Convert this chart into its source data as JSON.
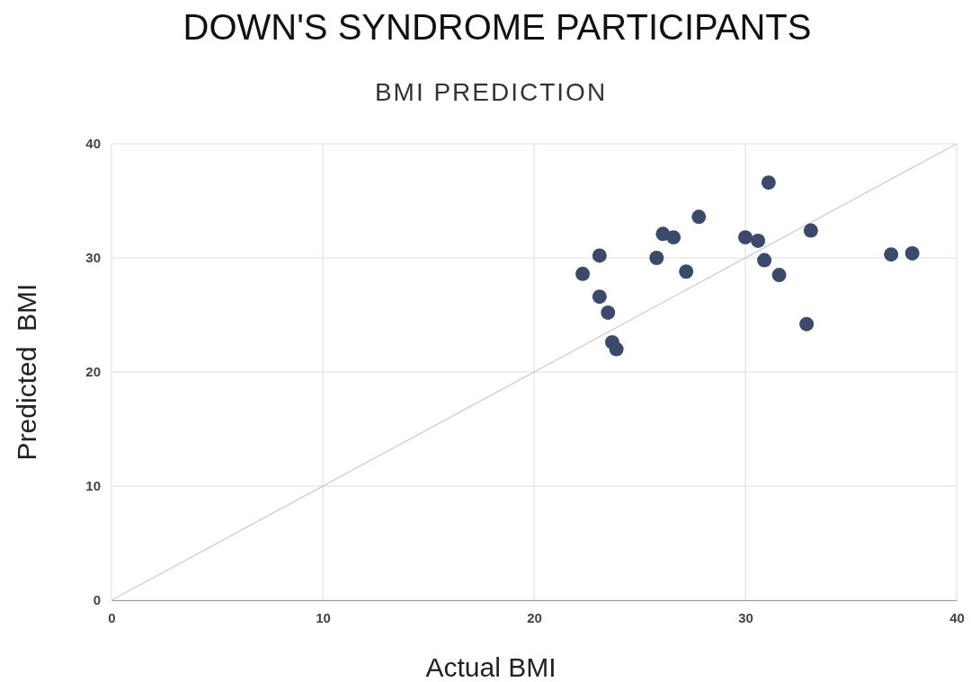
{
  "chart_data": {
    "type": "scatter",
    "title": "DOWN'S SYNDROME PARTICIPANTS",
    "subtitle": "BMI PREDICTION",
    "xlabel": "Actual BMI",
    "ylabel": "Predicted  BMI",
    "xlim": [
      0,
      40
    ],
    "ylim": [
      0,
      40
    ],
    "xticks": [
      0,
      10,
      20,
      30,
      40
    ],
    "yticks": [
      0,
      10,
      20,
      30,
      40
    ],
    "grid": true,
    "marker": "circle",
    "series": [
      {
        "type": "line",
        "marker": "none",
        "color": "#cccccc",
        "x": [
          0,
          40
        ],
        "values": [
          0,
          40
        ]
      },
      {
        "color": "#3b4a6b",
        "x": [
          22.3,
          23.1,
          23.1,
          23.5,
          23.7,
          23.9,
          25.8,
          26.1,
          26.6,
          27.2,
          27.8,
          30.0,
          30.6,
          30.9,
          31.1,
          31.6,
          32.9,
          33.1,
          36.9,
          37.9
        ],
        "values": [
          28.6,
          30.2,
          26.6,
          25.2,
          22.6,
          22.0,
          30.0,
          32.1,
          31.8,
          28.8,
          33.6,
          31.8,
          31.5,
          29.8,
          36.6,
          28.5,
          24.2,
          32.4,
          30.3,
          30.4
        ]
      }
    ]
  }
}
